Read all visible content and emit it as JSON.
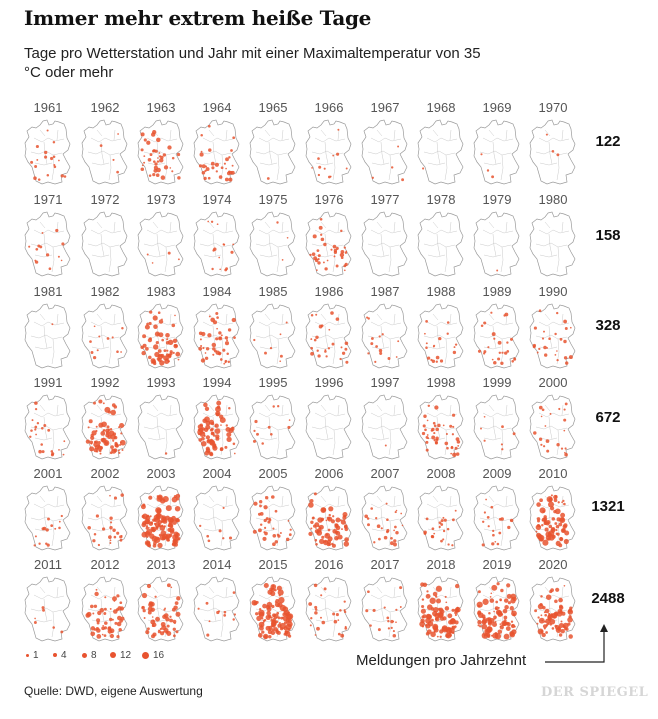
{
  "title": "Immer mehr extrem heiße Tage",
  "subtitle": "Tage pro Wetterstation und Jahr mit einer Maximaltemperatur von 35 °C oder mehr",
  "legend": [
    "1",
    "4",
    "8",
    "12",
    "16"
  ],
  "decade_label": "Meldungen pro Jahrzehnt",
  "source": "Quelle: DWD, eigene Auswertung",
  "logo": "DER SPIEGEL",
  "colors": {
    "dot": "#e8532f",
    "map_line": "#9a9a9a"
  },
  "years": [
    {
      "year": "1961",
      "intensity": 0.25
    },
    {
      "year": "1962",
      "intensity": 0.05
    },
    {
      "year": "1963",
      "intensity": 0.55
    },
    {
      "year": "1964",
      "intensity": 0.45
    },
    {
      "year": "1965",
      "intensity": 0.02
    },
    {
      "year": "1966",
      "intensity": 0.15
    },
    {
      "year": "1967",
      "intensity": 0.05
    },
    {
      "year": "1968",
      "intensity": 0.02
    },
    {
      "year": "1969",
      "intensity": 0.04
    },
    {
      "year": "1970",
      "intensity": 0.04
    },
    {
      "year": "1971",
      "intensity": 0.18
    },
    {
      "year": "1972",
      "intensity": 0.0
    },
    {
      "year": "1973",
      "intensity": 0.06
    },
    {
      "year": "1974",
      "intensity": 0.2
    },
    {
      "year": "1975",
      "intensity": 0.04
    },
    {
      "year": "1976",
      "intensity": 0.5
    },
    {
      "year": "1977",
      "intensity": 0.0
    },
    {
      "year": "1978",
      "intensity": 0.0
    },
    {
      "year": "1979",
      "intensity": 0.02
    },
    {
      "year": "1980",
      "intensity": 0.0
    },
    {
      "year": "1981",
      "intensity": 0.02
    },
    {
      "year": "1982",
      "intensity": 0.15
    },
    {
      "year": "1983",
      "intensity": 0.85
    },
    {
      "year": "1984",
      "intensity": 0.6
    },
    {
      "year": "1985",
      "intensity": 0.1
    },
    {
      "year": "1986",
      "intensity": 0.35
    },
    {
      "year": "1987",
      "intensity": 0.2
    },
    {
      "year": "1988",
      "intensity": 0.25
    },
    {
      "year": "1989",
      "intensity": 0.35
    },
    {
      "year": "1990",
      "intensity": 0.35
    },
    {
      "year": "1991",
      "intensity": 0.3
    },
    {
      "year": "1992",
      "intensity": 1.0
    },
    {
      "year": "1993",
      "intensity": 0.02
    },
    {
      "year": "1994",
      "intensity": 1.0
    },
    {
      "year": "1995",
      "intensity": 0.15
    },
    {
      "year": "1996",
      "intensity": 0.0
    },
    {
      "year": "1997",
      "intensity": 0.02
    },
    {
      "year": "1998",
      "intensity": 0.6
    },
    {
      "year": "1999",
      "intensity": 0.1
    },
    {
      "year": "2000",
      "intensity": 0.3
    },
    {
      "year": "2001",
      "intensity": 0.2
    },
    {
      "year": "2002",
      "intensity": 0.3
    },
    {
      "year": "2003",
      "intensity": 1.6
    },
    {
      "year": "2004",
      "intensity": 0.1
    },
    {
      "year": "2005",
      "intensity": 0.45
    },
    {
      "year": "2006",
      "intensity": 0.95
    },
    {
      "year": "2007",
      "intensity": 0.35
    },
    {
      "year": "2008",
      "intensity": 0.3
    },
    {
      "year": "2009",
      "intensity": 0.25
    },
    {
      "year": "2010",
      "intensity": 1.1
    },
    {
      "year": "2011",
      "intensity": 0.08
    },
    {
      "year": "2012",
      "intensity": 0.7
    },
    {
      "year": "2013",
      "intensity": 0.75
    },
    {
      "year": "2014",
      "intensity": 0.15
    },
    {
      "year": "2015",
      "intensity": 1.4
    },
    {
      "year": "2016",
      "intensity": 0.35
    },
    {
      "year": "2017",
      "intensity": 0.25
    },
    {
      "year": "2018",
      "intensity": 1.2
    },
    {
      "year": "2019",
      "intensity": 1.3
    },
    {
      "year": "2020",
      "intensity": 1.0
    }
  ],
  "decade_totals": [
    "122",
    "158",
    "328",
    "672",
    "1321",
    "2488"
  ]
}
